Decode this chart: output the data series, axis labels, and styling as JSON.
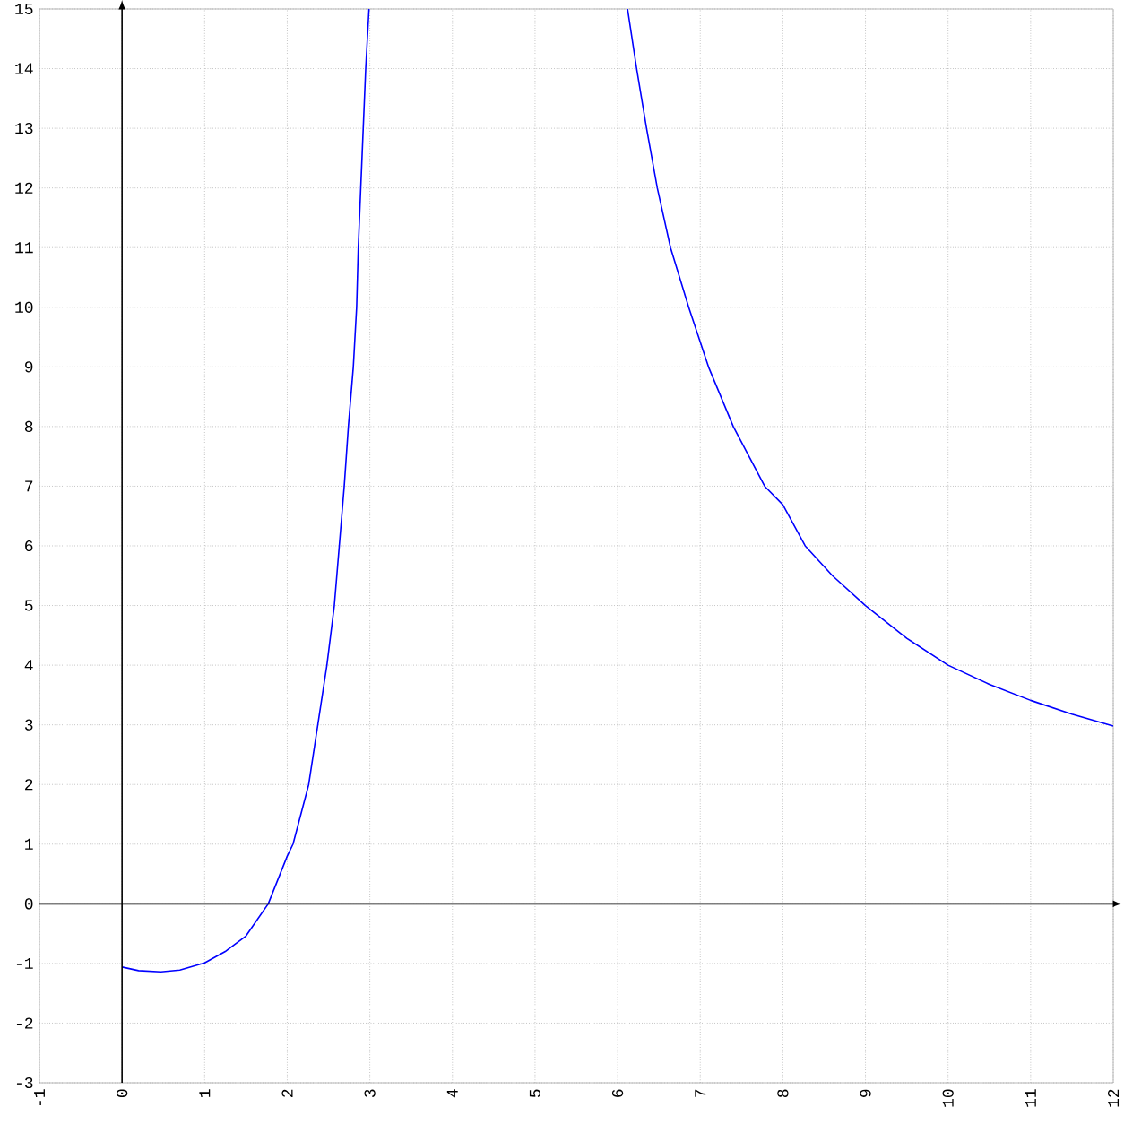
{
  "chart_data": {
    "type": "line",
    "xlim": [
      -1,
      12
    ],
    "ylim": [
      -3,
      15
    ],
    "xticks": [
      -1,
      0,
      1,
      2,
      3,
      4,
      5,
      6,
      7,
      8,
      9,
      10,
      11,
      12
    ],
    "yticks": [
      -3,
      -2,
      -1,
      0,
      1,
      2,
      3,
      4,
      5,
      6,
      7,
      8,
      9,
      10,
      11,
      12,
      13,
      14,
      15
    ],
    "grid": true,
    "marker": "none",
    "line_style": "solid",
    "series": [
      {
        "color": "#0000ff",
        "x": [
          0,
          0.2,
          0.47,
          0.7,
          1,
          1.25,
          1.5,
          1.77,
          2,
          2.07,
          2.26,
          2.37,
          2.48,
          2.57,
          2.63,
          2.69,
          2.74,
          2.8,
          2.84,
          2.86,
          2.89,
          2.92,
          2.95,
          2.99
        ],
        "values": [
          -1.06,
          -1.12,
          -1.14,
          -1.11,
          -0.99,
          -0.8,
          -0.54,
          0,
          0.8,
          1,
          2,
          3,
          4,
          5,
          6,
          7,
          8,
          9,
          10,
          11,
          12,
          13,
          14,
          15
        ]
      },
      {
        "color": "#0000ff",
        "x": [
          6.12,
          6.23,
          6.35,
          6.48,
          6.64,
          6.86,
          7.1,
          7.4,
          7.78,
          8,
          8.27,
          8.6,
          9,
          9.5,
          10,
          10.5,
          11,
          11.5,
          12
        ],
        "values": [
          15,
          14,
          13,
          12,
          11,
          10,
          9,
          8,
          7,
          6.69,
          6,
          5.5,
          5,
          4.45,
          4,
          3.68,
          3.41,
          3.18,
          2.98
        ]
      }
    ]
  }
}
